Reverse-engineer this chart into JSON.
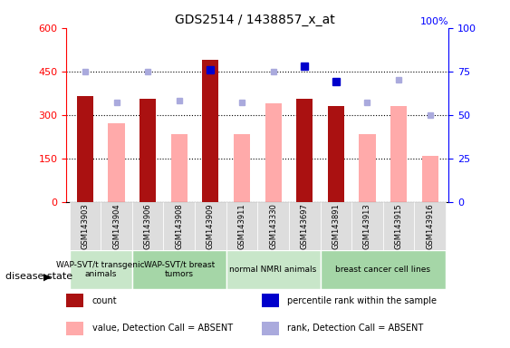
{
  "title": "GDS2514 / 1438857_x_at",
  "samples": [
    "GSM143903",
    "GSM143904",
    "GSM143906",
    "GSM143908",
    "GSM143909",
    "GSM143911",
    "GSM143330",
    "GSM143697",
    "GSM143891",
    "GSM143913",
    "GSM143915",
    "GSM143916"
  ],
  "count_values": [
    365,
    null,
    355,
    null,
    490,
    null,
    null,
    355,
    330,
    null,
    null,
    null
  ],
  "absent_value_values": [
    null,
    270,
    null,
    235,
    null,
    235,
    340,
    null,
    null,
    235,
    330,
    160
  ],
  "percentile_rank": [
    null,
    null,
    null,
    null,
    76,
    null,
    null,
    78,
    69,
    null,
    null,
    null
  ],
  "absent_rank_values": [
    75,
    57,
    75,
    58,
    null,
    57,
    75,
    null,
    null,
    57,
    70,
    50
  ],
  "groups": [
    {
      "label": "WAP-SVT/t transgenic\nanimals",
      "start": 0,
      "end": 2,
      "color": "#c8e6c9"
    },
    {
      "label": "WAP-SVT/t breast\ntumors",
      "start": 2,
      "end": 5,
      "color": "#a5d6a7"
    },
    {
      "label": "normal NMRI animals",
      "start": 5,
      "end": 8,
      "color": "#c8e6c9"
    },
    {
      "label": "breast cancer cell lines",
      "start": 8,
      "end": 12,
      "color": "#a5d6a7"
    }
  ],
  "ylim_left": [
    0,
    600
  ],
  "ylim_right": [
    0,
    100
  ],
  "yticks_left": [
    0,
    150,
    300,
    450,
    600
  ],
  "yticks_right": [
    0,
    25,
    50,
    75,
    100
  ],
  "bar_width": 0.35,
  "count_color": "#aa1111",
  "absent_value_color": "#ffaaaa",
  "percentile_color": "#0000cc",
  "absent_rank_color": "#aaaadd",
  "legend_items": [
    {
      "label": "count",
      "color": "#aa1111",
      "marker": "s"
    },
    {
      "label": "percentile rank within the sample",
      "color": "#0000cc",
      "marker": "s"
    },
    {
      "label": "value, Detection Call = ABSENT",
      "color": "#ffaaaa",
      "marker": "s"
    },
    {
      "label": "rank, Detection Call = ABSENT",
      "color": "#aaaadd",
      "marker": "s"
    }
  ],
  "disease_state_label": "disease state",
  "grid_color": "black",
  "grid_style": "dotted"
}
